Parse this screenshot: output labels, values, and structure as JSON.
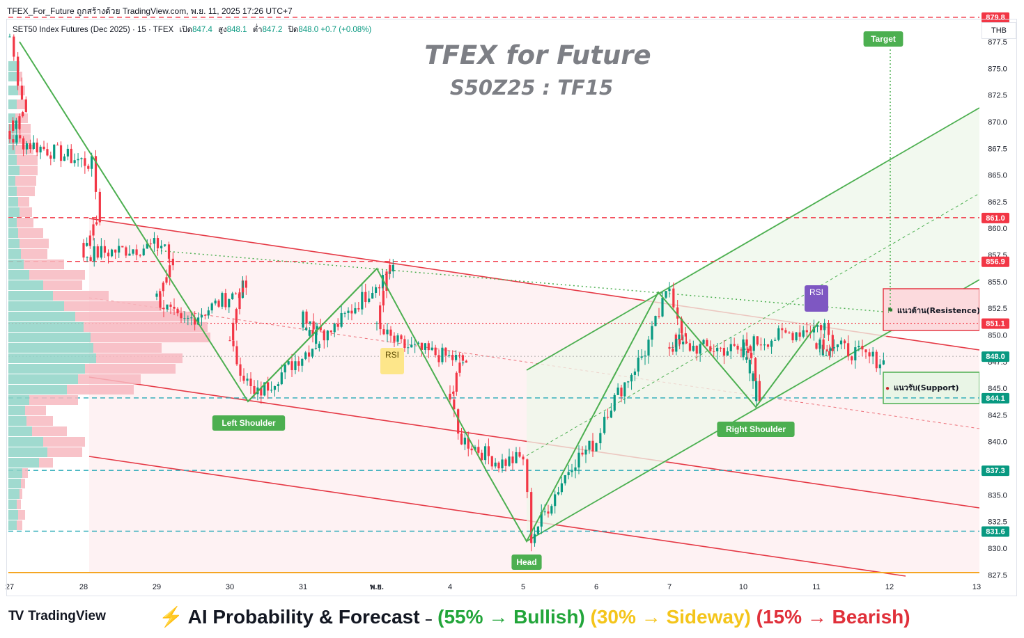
{
  "header": {
    "publisher_line": "TFEX_For_Future ถูกสร้างด้วย TradingView.com, พ.ย. 11, 2025 17:26 UTC+7",
    "symbol": "SET50 Index Futures (Dec 2025) · 15 · TFEX",
    "open_label": "เปิด",
    "open": "847.4",
    "high_label": "สูง",
    "high": "848.1",
    "low_label": "ต่ำ",
    "low": "847.2",
    "close_label": "ปิด",
    "close": "848.0",
    "change": "+0.7 (+0.08%)",
    "currency": "THB"
  },
  "watermark": {
    "title": "TFEX for Future",
    "subtitle": "S50Z25 : TF15"
  },
  "footer": {
    "brand": "TradingView",
    "forecast_prefix": "⚡ AI Probability & Forecast",
    "forecast_sep": "–",
    "bullish": "(55% → Bullish)",
    "sideway": "(30% → Sideway)",
    "bearish": "(15% → Bearish)"
  },
  "colors": {
    "up": "#089981",
    "down": "#f23645",
    "pattern": "#4caf50",
    "channel": "#e53945",
    "resistance": "#e53945",
    "support": "#4caf50",
    "cyan_level": "#26a9b6",
    "bullish": "#22a53a",
    "sideway": "#f4c51b",
    "bearish": "#e0303a"
  },
  "chart_data": {
    "type": "candlestick",
    "ylim": [
      827.5,
      879.8
    ],
    "y_ticks": [
      "827.5",
      "830.0",
      "832.5",
      "835.0",
      "837.5",
      "840.0",
      "842.5",
      "845.0",
      "847.5",
      "850.0",
      "852.5",
      "855.0",
      "857.5",
      "860.0",
      "862.5",
      "865.0",
      "867.5",
      "870.0",
      "872.5",
      "875.0",
      "877.5"
    ],
    "x_ticks": [
      "27",
      "28",
      "29",
      "30",
      "31",
      "พ.ย.",
      "4",
      "5",
      "6",
      "7",
      "10",
      "11",
      "12",
      "13"
    ],
    "last_price": 848.0,
    "price_labels": [
      {
        "value": 879.8,
        "text": "879.8",
        "color": "#f23645",
        "style": "dashed"
      },
      {
        "value": 861.0,
        "text": "861.0",
        "color": "#f23645",
        "style": "dashed"
      },
      {
        "value": 856.9,
        "text": "856.9",
        "color": "#f23645",
        "style": "dashed"
      },
      {
        "value": 851.1,
        "text": "851.1",
        "color": "#f23645",
        "style": "dotted"
      },
      {
        "value": 848.0,
        "text": "848.0",
        "color": "#089981",
        "style": "dotted"
      },
      {
        "value": 844.1,
        "text": "844.1",
        "color": "#089981",
        "style": "cyan"
      },
      {
        "value": 837.3,
        "text": "837.3",
        "color": "#089981",
        "style": "cyan"
      },
      {
        "value": 831.6,
        "text": "831.6",
        "color": "#089981",
        "style": "cyan"
      }
    ],
    "pattern_labels": [
      {
        "text": "Left Shoulder",
        "x": "30",
        "y": 843.9
      },
      {
        "text": "Head",
        "x": "5",
        "y": 830.4
      },
      {
        "text": "Right Shoulder",
        "x": "10",
        "y": 843.7
      },
      {
        "text": "Target",
        "x": "12",
        "y": 879.8
      }
    ],
    "indicator_labels": [
      {
        "text": "RSI",
        "x": "พ.ย.",
        "y": 851.4
      },
      {
        "text": "RSI",
        "x": "11",
        "y": 854.7
      }
    ],
    "zones": [
      {
        "text": "แนวต้าน(Resistence)",
        "kind": "resistance",
        "from": 850.9,
        "to": 855.0
      },
      {
        "text": "แนวรับ(Support)",
        "kind": "support",
        "from": 844.1,
        "to": 847.1
      }
    ],
    "close_path": [
      [
        "27",
        878.0
      ],
      [
        "27",
        874.0
      ],
      [
        "27",
        871.0
      ],
      [
        "27",
        868.5
      ],
      [
        "28",
        866.0
      ],
      [
        "28",
        861.0
      ],
      [
        "28",
        857.5
      ],
      [
        "29",
        858.5
      ],
      [
        "29",
        856.0
      ],
      [
        "29",
        853.5
      ],
      [
        "29",
        851.0
      ],
      [
        "30",
        854.5
      ],
      [
        "30",
        849.0
      ],
      [
        "30",
        844.2
      ],
      [
        "31",
        849.5
      ],
      [
        "31",
        852.0
      ],
      [
        "31",
        850.0
      ],
      [
        "พ.ย.",
        856.5
      ],
      [
        "พ.ย.",
        850.5
      ],
      [
        "พ.ย.",
        849.0
      ],
      [
        "4",
        847.5
      ],
      [
        "4",
        844.0
      ],
      [
        "4",
        840.5
      ],
      [
        "4",
        838.0
      ],
      [
        "5",
        838.5
      ],
      [
        "5",
        831.0
      ],
      [
        "5",
        838.0
      ],
      [
        "6",
        840.0
      ],
      [
        "6",
        842.5
      ],
      [
        "6",
        848.5
      ],
      [
        "7",
        854.5
      ],
      [
        "7",
        852.0
      ],
      [
        "7",
        849.5
      ],
      [
        "7",
        849.0
      ],
      [
        "10",
        848.5
      ],
      [
        "10",
        844.0
      ],
      [
        "10",
        849.0
      ],
      [
        "11",
        851.0
      ],
      [
        "11",
        848.5
      ],
      [
        "11",
        849.5
      ],
      [
        "12",
        847.0
      ],
      [
        "12",
        845.5
      ],
      [
        "12",
        844.2
      ],
      [
        "12",
        848.0
      ]
    ],
    "volume_profile": "left-side horizontal bars, teal = buy, pink = sell"
  }
}
